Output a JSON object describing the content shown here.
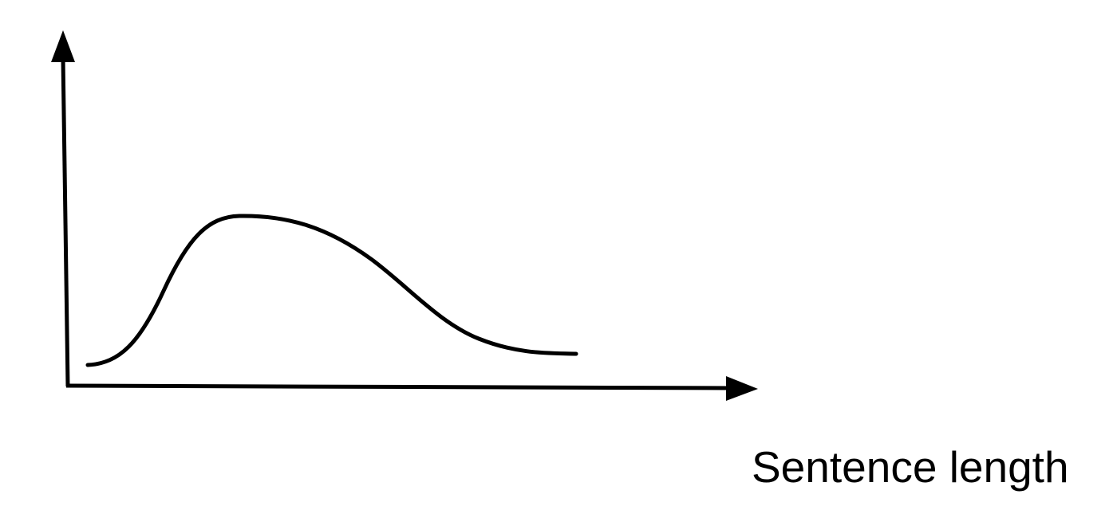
{
  "diagram": {
    "x_axis_label": "Sentence length",
    "y_axis_label": "",
    "curve_shape": "right-skewed distribution curve",
    "stroke_color": "#000000",
    "background_color": "#ffffff"
  }
}
